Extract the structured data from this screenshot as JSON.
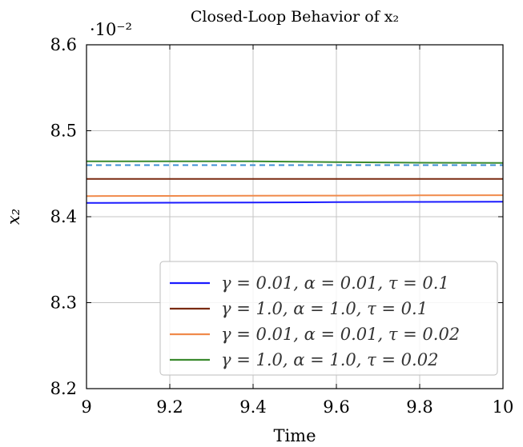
{
  "chart_data": {
    "type": "line",
    "title": "Closed-Loop Behavior of x₂",
    "xlabel": "Time",
    "ylabel": "x₂",
    "scale_label": "·10⁻²",
    "xlim": [
      9,
      10
    ],
    "ylim": [
      8.2,
      8.6
    ],
    "xticks": [
      "9",
      "9.2",
      "9.4",
      "9.6",
      "9.8",
      "10"
    ],
    "yticks": [
      "8.2",
      "8.3",
      "8.4",
      "8.5",
      "8.6"
    ],
    "grid": true,
    "legend_position": "bottom-right",
    "x": [
      9.0,
      9.2,
      9.4,
      9.6,
      9.8,
      10.0
    ],
    "series": [
      {
        "name": "γ = 0.01, α = 0.01, τ = 0.1",
        "color": "#1a1aff",
        "style": "solid",
        "values": [
          8.416,
          8.4163,
          8.4166,
          8.4169,
          8.4172,
          8.4175
        ]
      },
      {
        "name": "γ = 1.0, α = 1.0, τ = 0.1",
        "color": "#7a2a10",
        "style": "solid",
        "values": [
          8.444,
          8.444,
          8.444,
          8.444,
          8.444,
          8.444
        ]
      },
      {
        "name": "γ = 0.01, α = 0.01, τ = 0.02",
        "color": "#f08a4b",
        "style": "solid",
        "values": [
          8.424,
          8.4242,
          8.4244,
          8.4246,
          8.4248,
          8.425
        ]
      },
      {
        "name": "γ = 1.0, α = 1.0, τ = 0.02",
        "color": "#3a8a2e",
        "style": "solid",
        "values": [
          8.4645,
          8.4645,
          8.4645,
          8.4635,
          8.4628,
          8.4625
        ]
      },
      {
        "name": "",
        "color": "#3c8fd4",
        "style": "dashed",
        "values": [
          8.46,
          8.46,
          8.46,
          8.46,
          8.46,
          8.46
        ]
      }
    ]
  }
}
